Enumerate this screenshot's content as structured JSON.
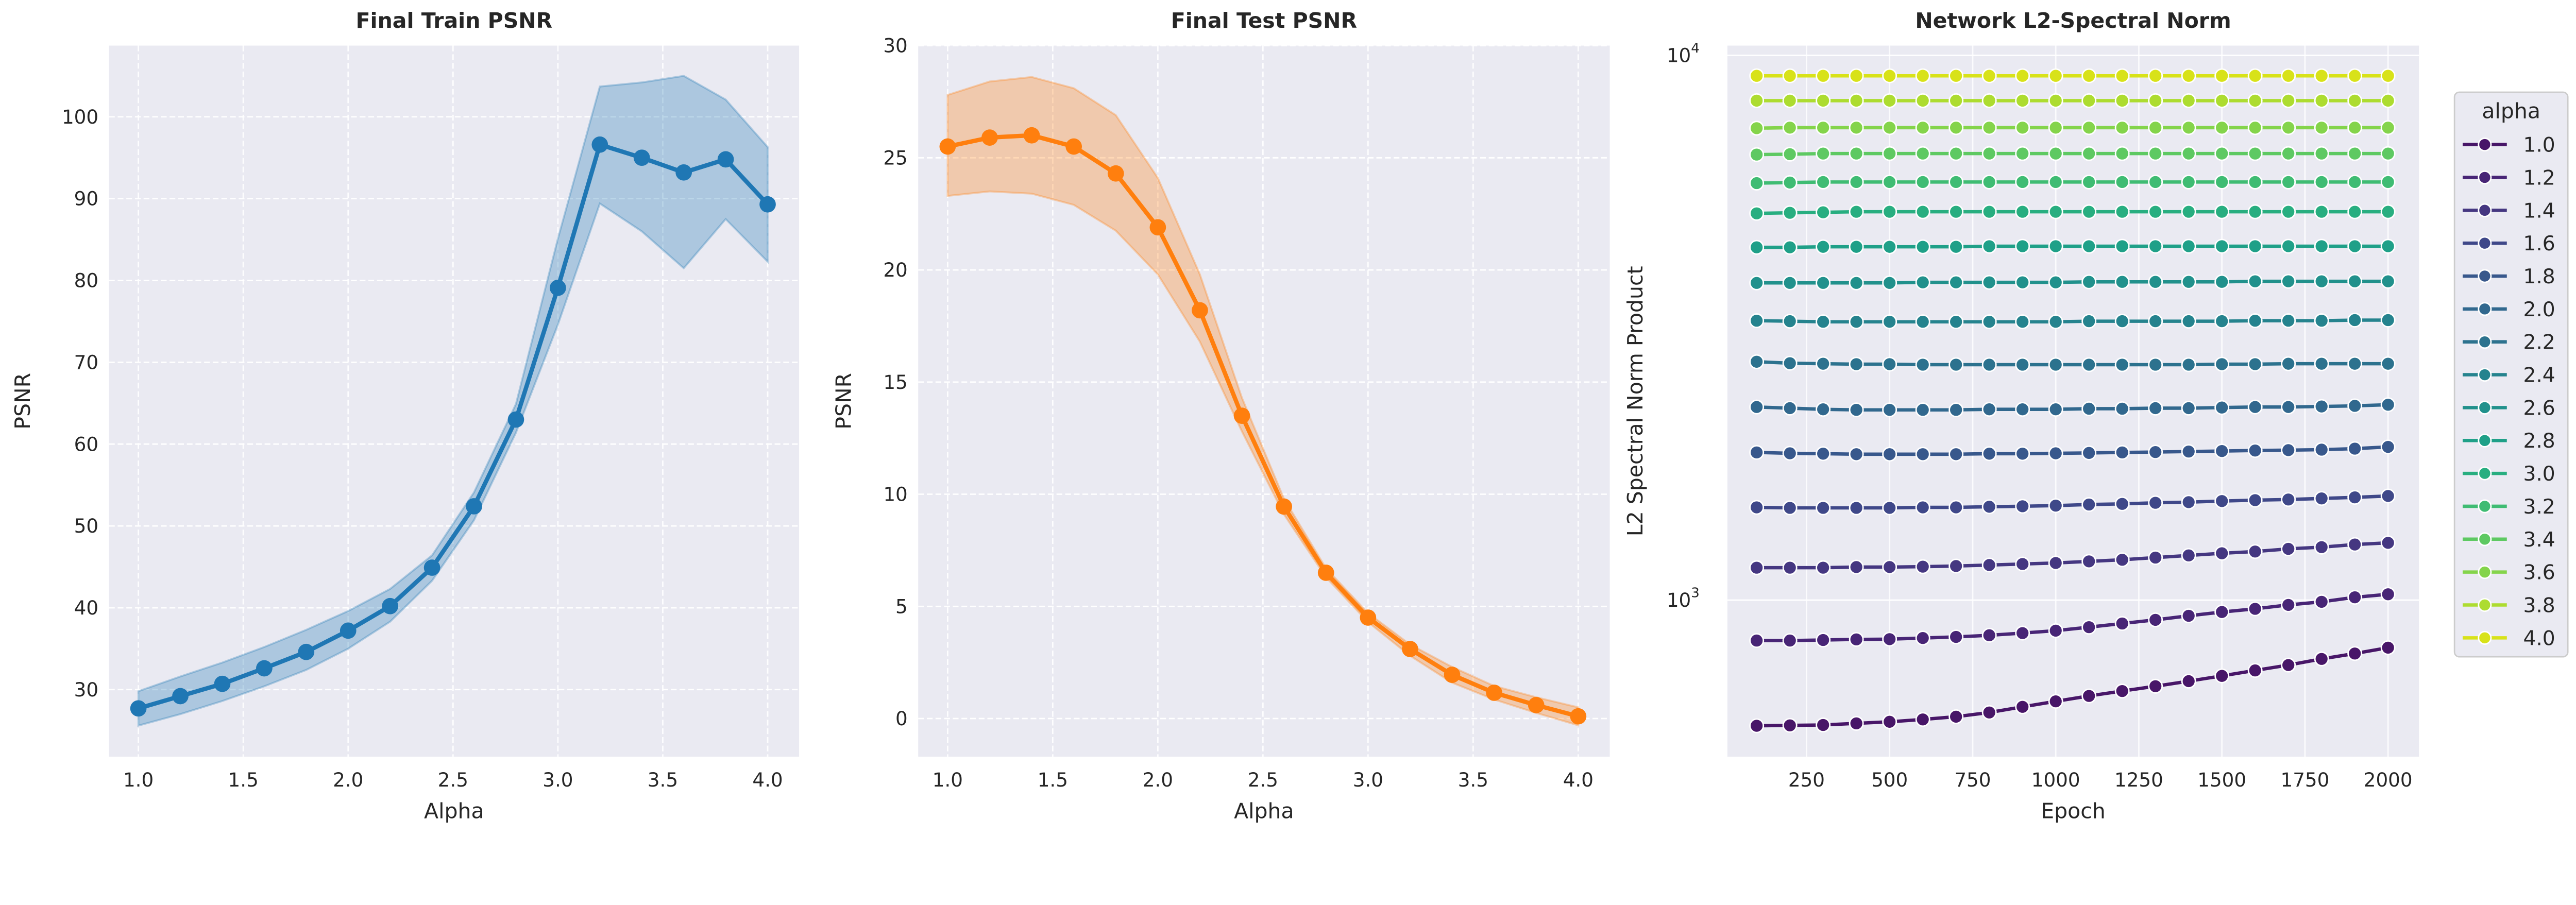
{
  "chart_data": [
    {
      "type": "line",
      "title": "Final Train PSNR",
      "xlabel": "Alpha",
      "ylabel": "PSNR",
      "xlim": [
        0.86,
        4.15
      ],
      "ylim": [
        21.8,
        108.7
      ],
      "xticks": [
        "1.0",
        "1.5",
        "2.0",
        "2.5",
        "3.0",
        "3.5",
        "4.0"
      ],
      "yticks": [
        "30",
        "40",
        "50",
        "60",
        "70",
        "80",
        "90",
        "100"
      ],
      "grid": true,
      "color": "#1f77b4",
      "x": [
        1.0,
        1.2,
        1.4,
        1.6,
        1.8,
        2.0,
        2.2,
        2.4,
        2.6,
        2.8,
        3.0,
        3.2,
        3.4,
        3.6,
        3.8,
        4.0
      ],
      "mean": [
        27.7,
        29.2,
        30.7,
        32.6,
        34.6,
        37.2,
        40.2,
        44.9,
        52.4,
        63.0,
        79.1,
        96.6,
        95.0,
        93.2,
        94.8,
        89.3
      ],
      "upper": [
        29.8,
        31.6,
        33.3,
        35.2,
        37.3,
        39.6,
        42.3,
        46.4,
        54.1,
        64.9,
        85.1,
        103.7,
        104.2,
        105.0,
        102.1,
        96.3
      ],
      "lower": [
        25.6,
        27.0,
        28.6,
        30.4,
        32.4,
        35.0,
        38.3,
        43.3,
        50.7,
        61.4,
        74.6,
        89.4,
        86.0,
        81.5,
        87.5,
        82.3
      ]
    },
    {
      "type": "line",
      "title": "Final Test PSNR",
      "xlabel": "Alpha",
      "ylabel": "PSNR",
      "xlim": [
        0.86,
        4.15
      ],
      "ylim": [
        -1.7,
        30.0
      ],
      "xticks": [
        "1.0",
        "1.5",
        "2.0",
        "2.5",
        "3.0",
        "3.5",
        "4.0"
      ],
      "yticks": [
        "0",
        "5",
        "10",
        "15",
        "20",
        "25",
        "30"
      ],
      "grid": true,
      "color": "#ff7f0e",
      "x": [
        1.0,
        1.2,
        1.4,
        1.6,
        1.8,
        2.0,
        2.2,
        2.4,
        2.6,
        2.8,
        3.0,
        3.2,
        3.4,
        3.6,
        3.8,
        4.0
      ],
      "mean": [
        25.5,
        25.9,
        26.0,
        25.5,
        24.3,
        21.9,
        18.2,
        13.5,
        9.45,
        6.5,
        4.5,
        3.1,
        1.95,
        1.15,
        0.6,
        0.1
      ],
      "upper": [
        27.8,
        28.4,
        28.6,
        28.1,
        26.9,
        24.1,
        19.8,
        14.3,
        9.8,
        6.7,
        4.7,
        3.3,
        2.3,
        1.45,
        0.95,
        0.5
      ],
      "lower": [
        23.3,
        23.5,
        23.4,
        22.9,
        21.75,
        19.8,
        16.8,
        12.8,
        9.1,
        6.3,
        4.3,
        2.8,
        1.6,
        0.85,
        0.25,
        -0.3
      ]
    },
    {
      "type": "line",
      "title": "Network L2-Spectral Norm",
      "xlabel": "Epoch",
      "ylabel": "L2 Spectral Norm Product",
      "yscale": "log",
      "xlim": [
        12,
        2093
      ],
      "ylim": [
        516,
        10420
      ],
      "xticks": [
        "250",
        "500",
        "750",
        "1000",
        "1250",
        "1500",
        "1750",
        "2000"
      ],
      "yticks": [
        {
          "base": "10",
          "exp": "3",
          "value": 1000
        },
        {
          "base": "10",
          "exp": "4",
          "value": 10000
        }
      ],
      "grid": true,
      "legend": {
        "title": "alpha",
        "placement": "outside-right"
      },
      "x": [
        100,
        200,
        300,
        400,
        500,
        600,
        700,
        800,
        900,
        1000,
        1100,
        1200,
        1300,
        1400,
        1500,
        1600,
        1700,
        1800,
        1900,
        2000
      ],
      "series": [
        {
          "name": "1.0",
          "color": "#481668",
          "values": [
            588,
            589,
            590,
            594,
            598,
            604,
            611,
            622,
            637,
            652,
            667,
            681,
            695,
            710,
            726,
            743,
            760,
            780,
            798,
            818
          ]
        },
        {
          "name": "1.2",
          "color": "#482576",
          "values": [
            843,
            843,
            845,
            847,
            848,
            852,
            856,
            862,
            870,
            879,
            892,
            906,
            920,
            936,
            951,
            964,
            980,
            993,
            1012,
            1025
          ]
        },
        {
          "name": "1.4",
          "color": "#453781",
          "values": [
            1147,
            1147,
            1147,
            1150,
            1150,
            1152,
            1155,
            1160,
            1165,
            1170,
            1178,
            1186,
            1197,
            1208,
            1219,
            1228,
            1242,
            1251,
            1265,
            1274
          ]
        },
        {
          "name": "1.6",
          "color": "#3f4889",
          "values": [
            1480,
            1477,
            1477,
            1477,
            1477,
            1480,
            1480,
            1484,
            1487,
            1491,
            1498,
            1502,
            1509,
            1513,
            1520,
            1526,
            1530,
            1537,
            1544,
            1553
          ]
        },
        {
          "name": "1.8",
          "color": "#38588c",
          "values": [
            1867,
            1860,
            1857,
            1853,
            1853,
            1853,
            1853,
            1857,
            1857,
            1860,
            1863,
            1867,
            1870,
            1874,
            1878,
            1882,
            1885,
            1889,
            1897,
            1911
          ]
        },
        {
          "name": "2.0",
          "color": "#31688e",
          "values": [
            2262,
            2251,
            2240,
            2235,
            2235,
            2235,
            2235,
            2240,
            2240,
            2240,
            2246,
            2246,
            2251,
            2251,
            2257,
            2262,
            2262,
            2267,
            2273,
            2284
          ]
        },
        {
          "name": "2.2",
          "color": "#2c728e",
          "values": [
            2739,
            2722,
            2716,
            2711,
            2711,
            2705,
            2705,
            2705,
            2705,
            2705,
            2705,
            2705,
            2705,
            2705,
            2711,
            2711,
            2716,
            2716,
            2716,
            2716
          ]
        },
        {
          "name": "2.4",
          "color": "#25838e",
          "values": [
            3258,
            3251,
            3243,
            3243,
            3243,
            3243,
            3243,
            3243,
            3243,
            3243,
            3251,
            3251,
            3251,
            3251,
            3251,
            3258,
            3258,
            3258,
            3266,
            3266
          ]
        },
        {
          "name": "2.6",
          "color": "#21918c",
          "values": [
            3822,
            3822,
            3822,
            3822,
            3822,
            3831,
            3831,
            3831,
            3831,
            3831,
            3839,
            3839,
            3839,
            3839,
            3839,
            3848,
            3848,
            3848,
            3848,
            3848
          ]
        },
        {
          "name": "2.8",
          "color": "#1fa088",
          "values": [
            4442,
            4442,
            4452,
            4452,
            4452,
            4452,
            4452,
            4463,
            4463,
            4463,
            4463,
            4463,
            4463,
            4463,
            4463,
            4463,
            4463,
            4463,
            4463,
            4463
          ]
        },
        {
          "name": "3.0",
          "color": "#28ae80",
          "values": [
            5128,
            5140,
            5151,
            5163,
            5163,
            5163,
            5163,
            5163,
            5163,
            5163,
            5163,
            5163,
            5163,
            5163,
            5163,
            5163,
            5163,
            5163,
            5163,
            5163
          ]
        },
        {
          "name": "3.2",
          "color": "#3fbc73",
          "values": [
            5827,
            5841,
            5854,
            5854,
            5854,
            5854,
            5854,
            5854,
            5854,
            5854,
            5854,
            5854,
            5854,
            5854,
            5854,
            5854,
            5854,
            5854,
            5854,
            5854
          ]
        },
        {
          "name": "3.4",
          "color": "#5ec962",
          "values": [
            6574,
            6585,
            6603,
            6603,
            6603,
            6603,
            6603,
            6603,
            6603,
            6603,
            6603,
            6603,
            6603,
            6603,
            6603,
            6603,
            6603,
            6603,
            6603,
            6603
          ]
        },
        {
          "name": "3.6",
          "color": "#84d44b",
          "values": [
            7350,
            7367,
            7367,
            7367,
            7367,
            7367,
            7367,
            7367,
            7367,
            7367,
            7367,
            7367,
            7367,
            7367,
            7367,
            7367,
            7367,
            7367,
            7367,
            7367
          ]
        },
        {
          "name": "3.8",
          "color": "#addc30",
          "values": [
            8257,
            8257,
            8257,
            8257,
            8257,
            8257,
            8257,
            8257,
            8257,
            8257,
            8257,
            8257,
            8257,
            8257,
            8257,
            8257,
            8257,
            8257,
            8257,
            8257
          ]
        },
        {
          "name": "4.0",
          "color": "#d8e219",
          "values": [
            9171,
            9171,
            9171,
            9171,
            9171,
            9171,
            9171,
            9171,
            9171,
            9171,
            9171,
            9171,
            9171,
            9171,
            9171,
            9171,
            9171,
            9171,
            9171,
            9171
          ]
        }
      ]
    }
  ]
}
